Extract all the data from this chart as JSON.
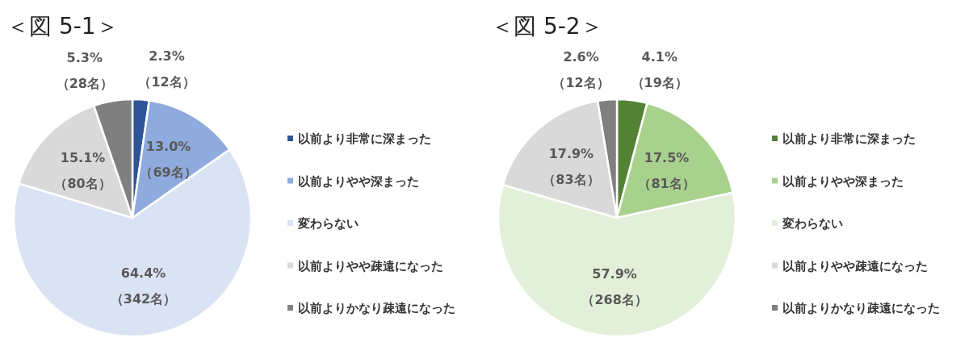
{
  "chart_data": [
    {
      "type": "pie",
      "title": "＜図 5-1＞",
      "categories": [
        "以前より非常に深まった",
        "以前よりやや深まった",
        "変わらない",
        "以前よりやや疎遠になった",
        "以前よりかなり疎遠になった"
      ],
      "values": [
        12,
        69,
        342,
        80,
        28
      ],
      "colors": [
        "#2f5597",
        "#8faadc",
        "#dae3f3",
        "#d9d9d9",
        "#7f7f7f"
      ],
      "value_labels": [
        "2.3%\n（12名）",
        "13.0%\n（69名）",
        "64.4%\n（342名）",
        "15.1%\n（80名）",
        "5.3%\n（28名）"
      ],
      "legend": "right"
    },
    {
      "type": "pie",
      "title": "＜図 5-2＞",
      "categories": [
        "以前より非常に深まった",
        "以前よりやや深まった",
        "変わらない",
        "以前よりやや疎遠になった",
        "以前よりかなり疎遠になった"
      ],
      "values": [
        19,
        81,
        268,
        83,
        12
      ],
      "colors": [
        "#548235",
        "#a9d18e",
        "#e2f0d9",
        "#d9d9d9",
        "#7f7f7f"
      ],
      "value_labels": [
        "4.1%\n（19名）",
        "17.5%\n（81名）",
        "57.9%\n（268名）",
        "17.9%\n（83名）",
        "2.6%\n（12名）"
      ],
      "legend": "right"
    }
  ]
}
